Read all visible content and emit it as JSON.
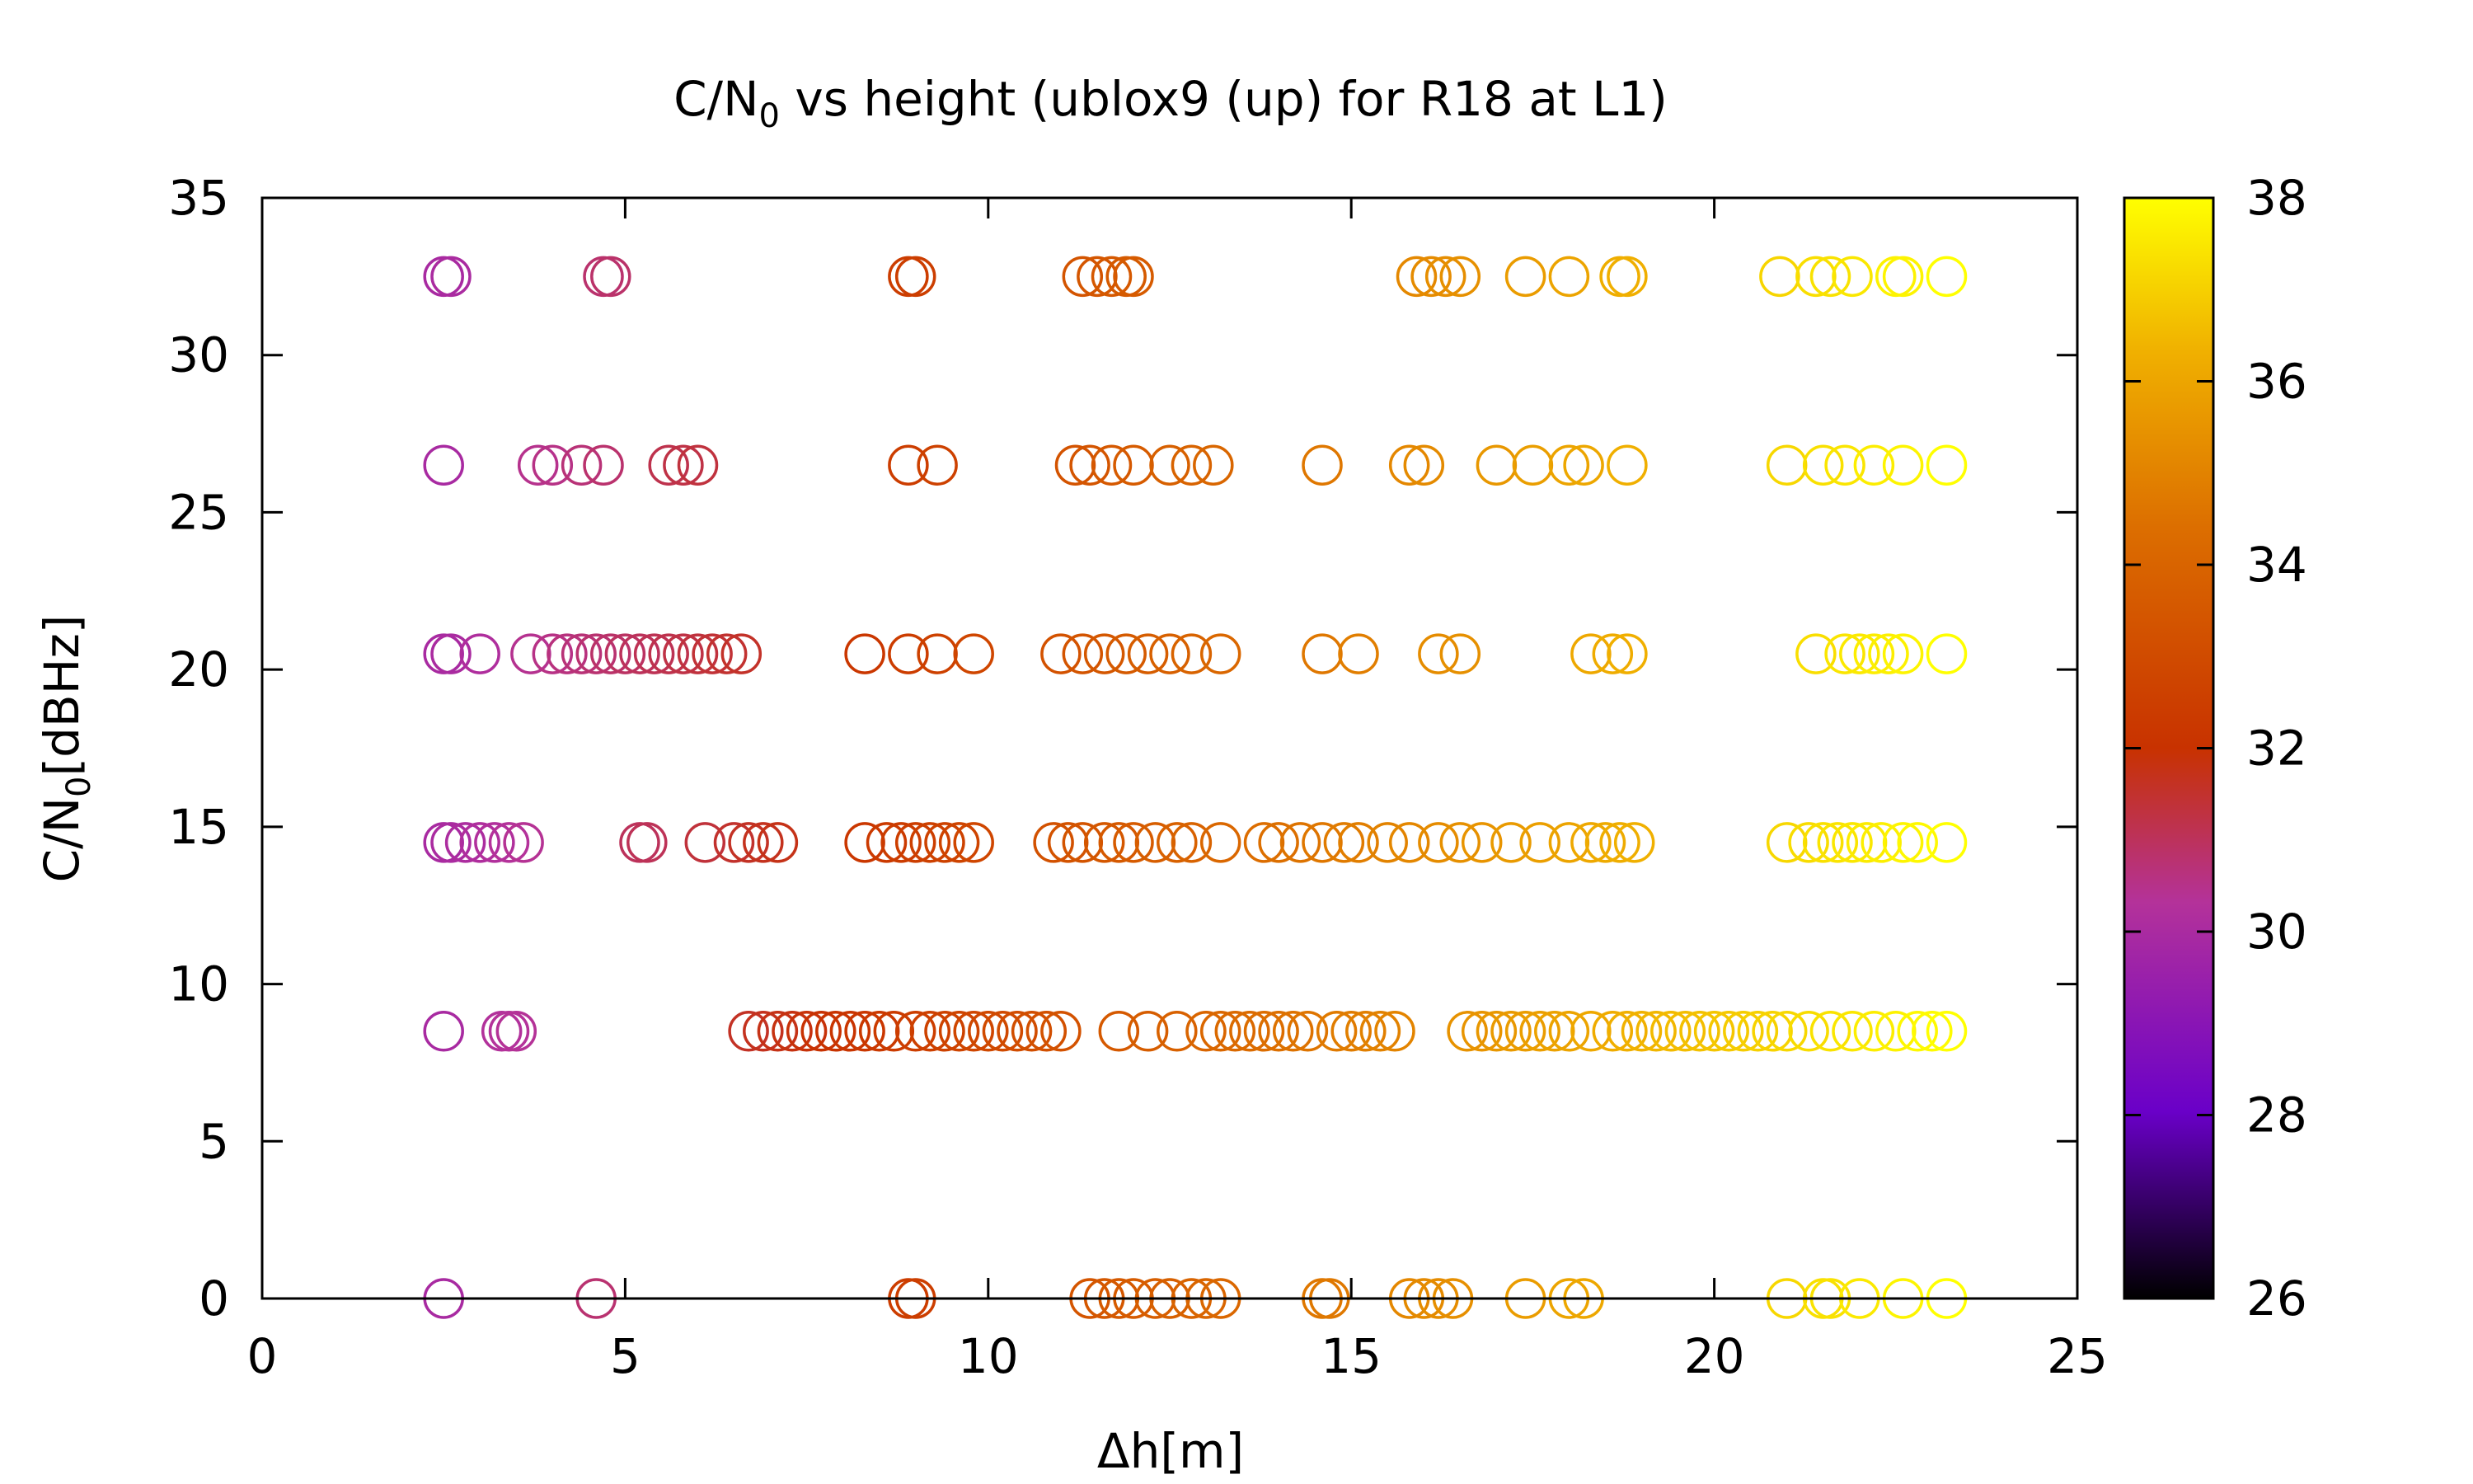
{
  "chart_data": {
    "type": "scatter",
    "title": {
      "main": "C/N",
      "sub": "0",
      "rest": " vs height (ublox9 (up) for R18 at L1)"
    },
    "xlabel": "Δh[m]",
    "ylabel": {
      "main": "C/N",
      "sub": "0",
      "rest": "[dBHz]"
    },
    "xlim": [
      0,
      25
    ],
    "ylim": [
      0,
      35
    ],
    "x_ticks": [
      "0",
      "5",
      "10",
      "15",
      "20",
      "25"
    ],
    "y_ticks": [
      "0",
      "5",
      "10",
      "15",
      "20",
      "25",
      "30",
      "35"
    ],
    "colorbar": {
      "range": [
        26,
        38
      ],
      "ticks": [
        "26",
        "28",
        "30",
        "32",
        "34",
        "36",
        "38"
      ],
      "palette": [
        "#000000",
        "#6a00c8",
        "#b4329a",
        "#c83200",
        "#dc6e00",
        "#f0b000",
        "#ffff00"
      ]
    },
    "marker": "open-circle",
    "grid": false,
    "series": [
      {
        "y": 0,
        "x": [
          2.5,
          4.6,
          8.9,
          9.0,
          11.4,
          11.6,
          11.8,
          12.0,
          12.3,
          12.5,
          12.8,
          13.0,
          13.2,
          14.6,
          14.7,
          15.8,
          16.0,
          16.2,
          16.4,
          17.4,
          18.0,
          18.2,
          21.0,
          21.5,
          21.6,
          22.0,
          22.6,
          23.2
        ]
      },
      {
        "y": 8.5,
        "x": [
          2.5,
          3.3,
          3.4,
          3.5,
          6.7,
          6.9,
          7.1,
          7.3,
          7.5,
          7.7,
          7.9,
          8.1,
          8.3,
          8.5,
          8.7,
          9.0,
          9.2,
          9.4,
          9.6,
          9.8,
          10.0,
          10.2,
          10.4,
          10.6,
          10.8,
          11.0,
          11.8,
          12.2,
          12.6,
          13.0,
          13.2,
          13.4,
          13.6,
          13.8,
          14.0,
          14.2,
          14.4,
          14.8,
          15.0,
          15.2,
          15.4,
          15.6,
          16.6,
          16.8,
          17.0,
          17.2,
          17.4,
          17.6,
          17.8,
          18.0,
          18.3,
          18.6,
          18.8,
          19.0,
          19.2,
          19.4,
          19.6,
          19.8,
          20.0,
          20.2,
          20.4,
          20.6,
          20.8,
          21.0,
          21.3,
          21.6,
          21.9,
          22.2,
          22.5,
          22.8,
          23.0,
          23.2
        ]
      },
      {
        "y": 14.5,
        "x": [
          2.5,
          2.6,
          2.8,
          3.0,
          3.2,
          3.4,
          3.6,
          5.2,
          5.3,
          6.1,
          6.5,
          6.7,
          6.9,
          7.1,
          8.3,
          8.6,
          8.8,
          9.0,
          9.2,
          9.4,
          9.6,
          9.8,
          10.9,
          11.1,
          11.3,
          11.6,
          11.8,
          12.0,
          12.3,
          12.6,
          12.8,
          13.2,
          13.8,
          14.0,
          14.3,
          14.6,
          14.9,
          15.1,
          15.5,
          15.8,
          16.2,
          16.5,
          16.8,
          17.2,
          17.6,
          18.0,
          18.3,
          18.5,
          18.7,
          18.9,
          21.0,
          21.3,
          21.5,
          21.7,
          21.9,
          22.1,
          22.3,
          22.6,
          22.8,
          23.2
        ]
      },
      {
        "y": 20.5,
        "x": [
          2.5,
          2.6,
          3.0,
          3.7,
          4.0,
          4.2,
          4.4,
          4.6,
          4.8,
          5.0,
          5.2,
          5.4,
          5.6,
          5.8,
          6.0,
          6.2,
          6.4,
          6.6,
          8.3,
          8.9,
          9.3,
          9.8,
          11.0,
          11.3,
          11.6,
          11.9,
          12.2,
          12.5,
          12.8,
          13.2,
          14.6,
          15.1,
          16.2,
          16.5,
          18.3,
          18.6,
          18.8,
          21.4,
          21.8,
          22.0,
          22.2,
          22.4,
          22.6,
          23.2
        ]
      },
      {
        "y": 26.5,
        "x": [
          2.5,
          3.8,
          4.0,
          4.4,
          4.7,
          5.6,
          5.8,
          6.0,
          8.9,
          9.3,
          11.2,
          11.4,
          11.7,
          12.0,
          12.5,
          12.8,
          13.1,
          14.6,
          15.8,
          16.0,
          17.0,
          17.5,
          18.0,
          18.2,
          18.8,
          21.0,
          21.5,
          21.8,
          22.2,
          22.6,
          23.2
        ]
      },
      {
        "y": 32.5,
        "x": [
          2.5,
          2.6,
          4.7,
          4.8,
          8.9,
          9.0,
          11.3,
          11.5,
          11.7,
          11.9,
          12.0,
          15.9,
          16.1,
          16.3,
          16.5,
          17.4,
          18.0,
          18.7,
          18.8,
          20.9,
          21.4,
          21.6,
          21.9,
          22.5,
          22.6,
          23.2
        ]
      }
    ]
  }
}
